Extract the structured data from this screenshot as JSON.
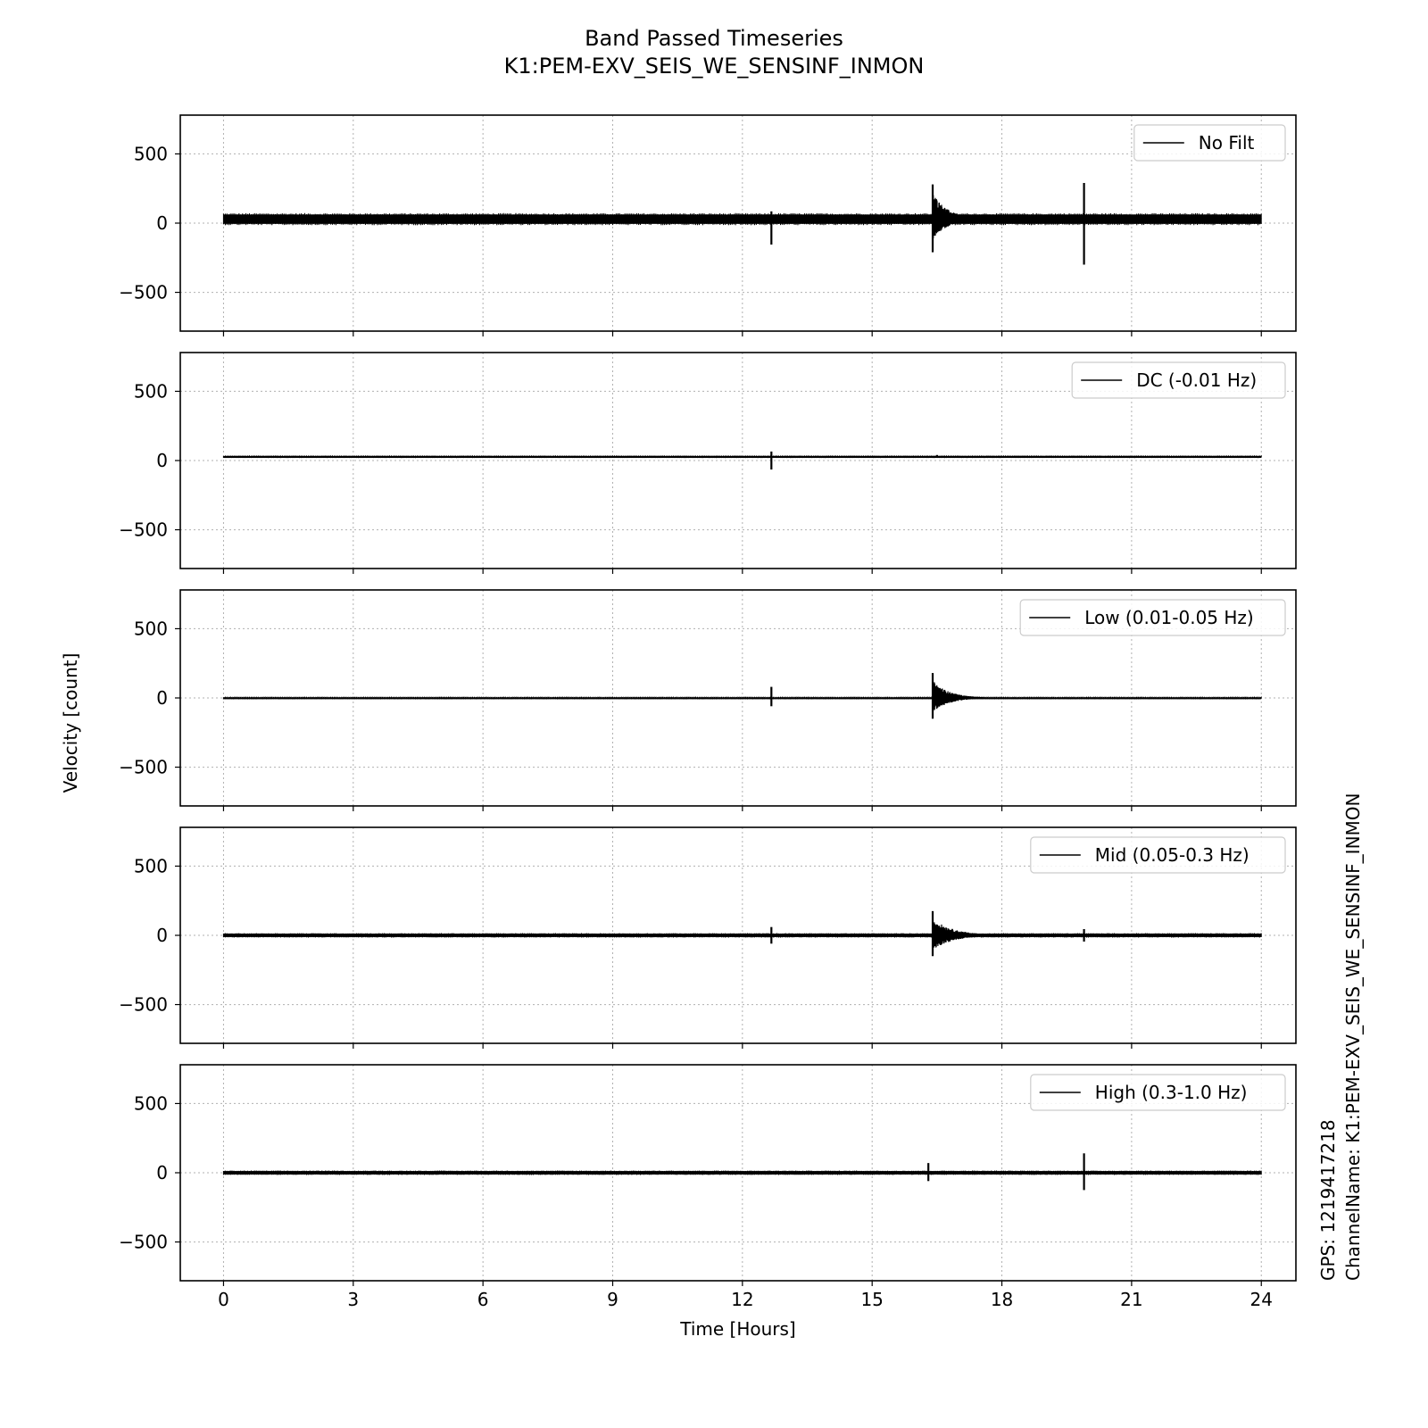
{
  "figure": {
    "title_line1": "Band Passed Timeseries",
    "title_line2": "K1:PEM-EXV_SEIS_WE_SENSINF_INMON",
    "ylabel": "Velocity [count]",
    "xlabel": "Time [Hours]",
    "side_gps": "GPS: 1219417218",
    "side_channel": "ChannelName: K1:PEM-EXV_SEIS_WE_SENSINF_INMON"
  },
  "chart_data": [
    {
      "type": "line",
      "legend": "No Filt",
      "legend_position": "top-right",
      "xlim": [
        -1,
        24.8
      ],
      "ylim": [
        -780,
        780
      ],
      "xticks": [
        0,
        3,
        6,
        9,
        12,
        15,
        18,
        21,
        24
      ],
      "yticks": [
        -500,
        0,
        500
      ],
      "grid": true,
      "color": "#000000",
      "series": [
        {
          "x": [
            0,
            24
          ],
          "y": [
            28,
            28
          ],
          "band": [
            -5,
            62
          ]
        }
      ],
      "events": [
        {
          "x": 12.67,
          "y_min": -155,
          "y_max": 85
        },
        {
          "x": 16.4,
          "y_min": -210,
          "y_max": 280,
          "decay_to": 17.5
        },
        {
          "x": 19.9,
          "y_min": -300,
          "y_max": 290
        }
      ]
    },
    {
      "type": "line",
      "legend": "DC (-0.01 Hz)",
      "legend_position": "top-right",
      "xlim": [
        -1,
        24.8
      ],
      "ylim": [
        -780,
        780
      ],
      "xticks": [
        0,
        3,
        6,
        9,
        12,
        15,
        18,
        21,
        24
      ],
      "yticks": [
        -500,
        0,
        500
      ],
      "grid": true,
      "color": "#000000",
      "series": [
        {
          "x": [
            0,
            24
          ],
          "y": [
            28,
            28
          ],
          "band": [
            24,
            32
          ]
        }
      ],
      "events": [
        {
          "x": 12.67,
          "y_min": -65,
          "y_max": 65
        },
        {
          "x": 16.5,
          "y_min": 20,
          "y_max": 40
        }
      ]
    },
    {
      "type": "line",
      "legend": "Low (0.01-0.05 Hz)",
      "legend_position": "top-right",
      "xlim": [
        -1,
        24.8
      ],
      "ylim": [
        -780,
        780
      ],
      "xticks": [
        0,
        3,
        6,
        9,
        12,
        15,
        18,
        21,
        24
      ],
      "yticks": [
        -500,
        0,
        500
      ],
      "grid": true,
      "color": "#000000",
      "series": [
        {
          "x": [
            0,
            24
          ],
          "y": [
            0,
            0
          ],
          "band": [
            -4,
            4
          ]
        }
      ],
      "events": [
        {
          "x": 12.67,
          "y_min": -60,
          "y_max": 80
        },
        {
          "x": 16.4,
          "y_min": -150,
          "y_max": 180,
          "decay_to": 17.6
        }
      ]
    },
    {
      "type": "line",
      "legend": "Mid (0.05-0.3 Hz)",
      "legend_position": "top-right",
      "xlim": [
        -1,
        24.8
      ],
      "ylim": [
        -780,
        780
      ],
      "xticks": [
        0,
        3,
        6,
        9,
        12,
        15,
        18,
        21,
        24
      ],
      "yticks": [
        -500,
        0,
        500
      ],
      "grid": true,
      "color": "#000000",
      "series": [
        {
          "x": [
            0,
            24
          ],
          "y": [
            0,
            0
          ],
          "band": [
            -12,
            12
          ]
        }
      ],
      "events": [
        {
          "x": 12.67,
          "y_min": -60,
          "y_max": 60
        },
        {
          "x": 16.4,
          "y_min": -150,
          "y_max": 175,
          "decay_to": 17.9
        },
        {
          "x": 19.9,
          "y_min": -45,
          "y_max": 45
        }
      ]
    },
    {
      "type": "line",
      "legend": "High (0.3-1.0 Hz)",
      "legend_position": "top-right",
      "xlim": [
        -1,
        24.8
      ],
      "ylim": [
        -780,
        780
      ],
      "xticks": [
        0,
        3,
        6,
        9,
        12,
        15,
        18,
        21,
        24
      ],
      "yticks": [
        -500,
        0,
        500
      ],
      "grid": true,
      "color": "#000000",
      "series": [
        {
          "x": [
            0,
            24
          ],
          "y": [
            0,
            0
          ],
          "band": [
            -12,
            12
          ]
        }
      ],
      "events": [
        {
          "x": 16.3,
          "y_min": -60,
          "y_max": 70
        },
        {
          "x": 19.9,
          "y_min": -125,
          "y_max": 140
        }
      ]
    }
  ]
}
